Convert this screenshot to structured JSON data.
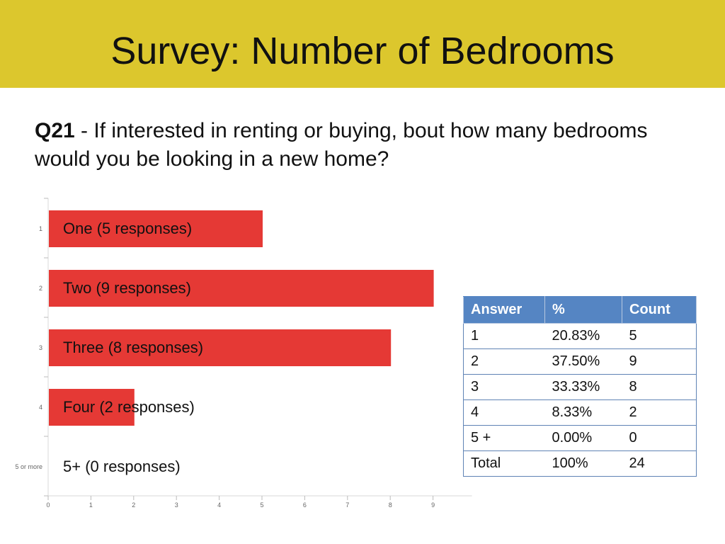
{
  "title": "Survey: Number of Bedrooms",
  "question": {
    "id": "Q21",
    "text": " - If interested in renting or buying, bout how many bedrooms would you be looking in a new home?"
  },
  "chart_data": {
    "type": "bar",
    "orientation": "horizontal",
    "categories": [
      "1",
      "2",
      "3",
      "4",
      "5 or more"
    ],
    "values": [
      5,
      9,
      8,
      2,
      0
    ],
    "bar_labels": [
      "One (5 responses)",
      "Two (9 responses)",
      "Three (8 responses)",
      "Four (2 responses)",
      "5+ (0 responses)"
    ],
    "xlim": [
      0,
      9
    ],
    "x_ticks": [
      "0",
      "1",
      "2",
      "3",
      "4",
      "5",
      "6",
      "7",
      "8",
      "9"
    ],
    "bar_color": "#e53935",
    "grid": false
  },
  "table": {
    "headers": [
      "Answer",
      "%",
      "Count"
    ],
    "rows": [
      [
        "1",
        "20.83%",
        "5"
      ],
      [
        "2",
        "37.50%",
        "9"
      ],
      [
        "3",
        "33.33%",
        "8"
      ],
      [
        "4",
        "8.33%",
        "2"
      ],
      [
        "5 +",
        "0.00%",
        "0"
      ],
      [
        "Total",
        "100%",
        "24"
      ]
    ],
    "header_color": "#5585c3"
  },
  "colors": {
    "title_bar": "#dcc72d"
  }
}
